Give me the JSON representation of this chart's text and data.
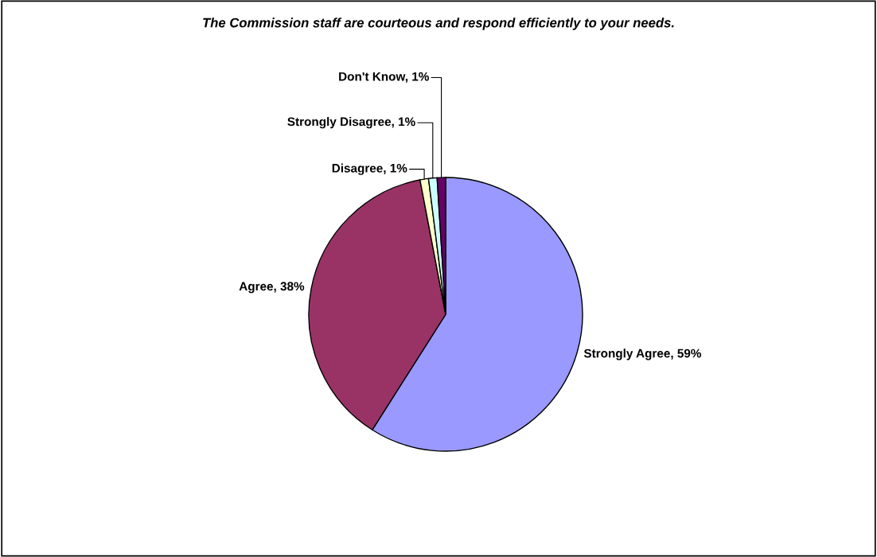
{
  "chart_data": {
    "type": "pie",
    "title": "The Commission staff are courteous and respond efficiently to your needs.",
    "categories": [
      "Strongly Agree",
      "Agree",
      "Disagree",
      "Strongly Disagree",
      "Don't Know"
    ],
    "values": [
      59,
      38,
      1,
      1,
      1
    ],
    "colors": [
      "#9999ff",
      "#993366",
      "#ffffcc",
      "#ccffff",
      "#660066"
    ],
    "value_labels": [
      "59%",
      "38%",
      "1%",
      "1%",
      "1%"
    ],
    "legend": false
  }
}
